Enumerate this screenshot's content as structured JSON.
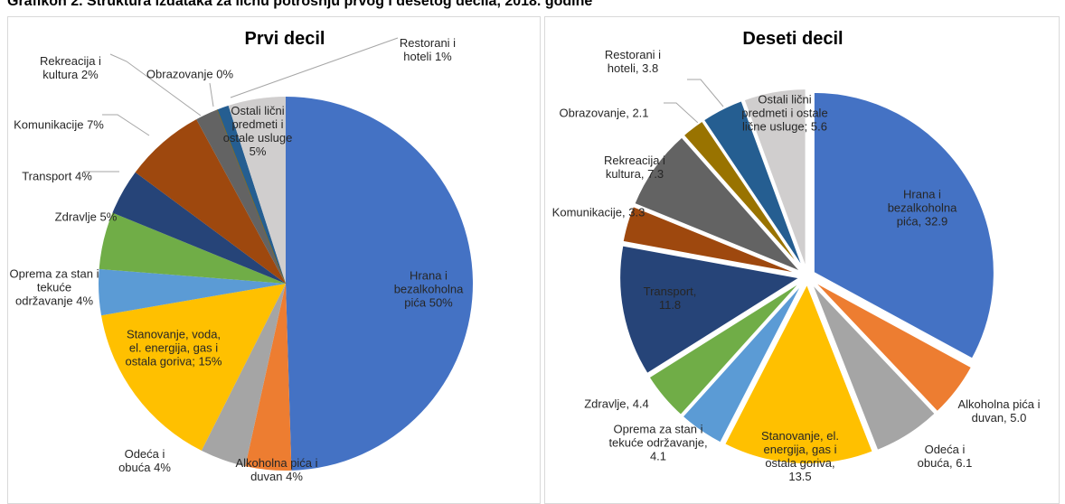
{
  "title": "Grafikon 2. Struktura izdataka za ličnu potrošnju prvog i desetog decila, 2018. godine",
  "chart_data": [
    {
      "type": "pie",
      "title": "Prvi decil",
      "exploded": false,
      "categories": [
        "Hrana i bezalkoholna pića",
        "Alkoholna pića i duvan",
        "Odeća i obuća",
        "Stanovanje, voda, el. energija, gas i ostala goriva;",
        "Oprema za stan i tekuće održavanje",
        "Zdravlje",
        "Transport",
        "Komunikacije",
        "Rekreacija i kultura",
        "Obrazovanje",
        "Restorani i hoteli",
        "Ostali lični predmeti i ostale usluge"
      ],
      "values": [
        50,
        4,
        4,
        15,
        4,
        5,
        4,
        7,
        2,
        0,
        1,
        5
      ],
      "value_labels": [
        "50%",
        "4%",
        "4%",
        "15%",
        "4%",
        "5%",
        "4%",
        "7%",
        "2%",
        "0%",
        "1%",
        "5%"
      ],
      "colors": [
        "#4472c4",
        "#ed7d31",
        "#a5a5a5",
        "#ffc000",
        "#5b9bd5",
        "#70ad47",
        "#264478",
        "#9e480e",
        "#636363",
        "#997300",
        "#255e91",
        "#d0cece"
      ]
    },
    {
      "type": "pie",
      "title": "Deseti decil",
      "exploded": true,
      "categories": [
        "Hrana i bezalkoholna pića,",
        "Alkoholna pića i duvan,",
        "Odeća i obuća,",
        "Stanovanje, el. energija, gas i ostala goriva,",
        "Oprema za stan i tekuće održavanje,",
        "Zdravlje,",
        "Transport,",
        "Komunikacije,",
        "Rekreacija i kultura,",
        "Obrazovanje,",
        "Restorani i hoteli,",
        "Ostali lični predmeti i ostale lične usluge;"
      ],
      "values": [
        32.9,
        5.0,
        6.1,
        13.5,
        4.1,
        4.4,
        11.8,
        3.3,
        7.3,
        2.1,
        3.8,
        5.6
      ],
      "value_labels": [
        "32.9",
        "5.0",
        "6.1",
        "13.5",
        "4.1",
        "4.4",
        "11.8",
        "3.3",
        "7.3",
        "2.1",
        "3.8",
        "5.6"
      ],
      "colors": [
        "#4472c4",
        "#ed7d31",
        "#a5a5a5",
        "#ffc000",
        "#5b9bd5",
        "#70ad47",
        "#264478",
        "#9e480e",
        "#636363",
        "#997300",
        "#255e91",
        "#d0cece"
      ]
    }
  ]
}
